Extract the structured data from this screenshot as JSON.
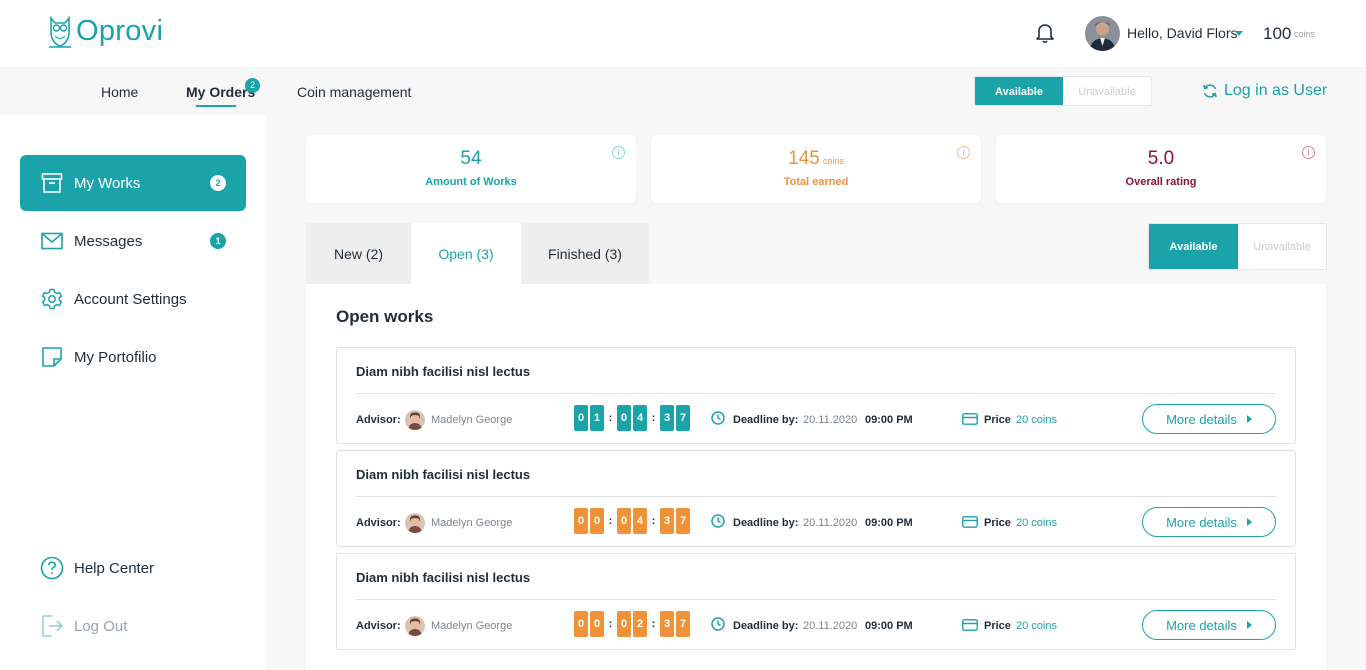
{
  "brand": {
    "name": "Oprovi",
    "accent": "#1aa3a9"
  },
  "header": {
    "greeting": "Hello, David Flors",
    "coins_value": "100",
    "coins_unit": "coins"
  },
  "nav": {
    "items": [
      {
        "label": "Home"
      },
      {
        "label": "My Orders",
        "badge": "2"
      },
      {
        "label": "Coin management"
      }
    ],
    "availability": {
      "on": "Available",
      "off": "Unavailable"
    },
    "login_as_user": "Log in as User"
  },
  "sidebar": {
    "items": [
      {
        "label": "My Works",
        "badge": "2",
        "icon": "archive-icon"
      },
      {
        "label": "Messages",
        "badge": "1",
        "icon": "mail-icon"
      },
      {
        "label": "Account Settings",
        "icon": "gear-icon"
      },
      {
        "label": "My Portofilio",
        "icon": "note-icon"
      }
    ],
    "bottom": [
      {
        "label": "Help Center",
        "icon": "help-icon"
      },
      {
        "label": "Log Out",
        "icon": "logout-icon"
      }
    ]
  },
  "stats": [
    {
      "value": "54",
      "unit": "",
      "label": "Amount of Works",
      "color": "#1aa3a9"
    },
    {
      "value": "145",
      "unit": "coins",
      "label": "Total earned",
      "color": "#f0923a"
    },
    {
      "value": "5.0",
      "unit": "",
      "label": "Overall rating",
      "color": "#8e1232"
    }
  ],
  "tabs": [
    {
      "label": "New (2)"
    },
    {
      "label": "Open (3)"
    },
    {
      "label": "Finished (3)"
    }
  ],
  "availability2": {
    "on": "Available",
    "off": "Unavailable"
  },
  "panel": {
    "title": "Open works",
    "labels": {
      "advisor": "Advisor:",
      "deadline": "Deadline by:",
      "price": "Price",
      "more": "More details"
    },
    "works": [
      {
        "title": "Diam nibh facilisi nisl lectus",
        "advisor": "Madelyn George",
        "timer": [
          "0",
          "1",
          "0",
          "4",
          "3",
          "7"
        ],
        "timer_color": "#1aa3a9",
        "date": "20.11.2020",
        "time": "09:00 PM",
        "price": "20 coins"
      },
      {
        "title": "Diam nibh facilisi nisl lectus",
        "advisor": "Madelyn George",
        "timer": [
          "0",
          "0",
          "0",
          "4",
          "3",
          "7"
        ],
        "timer_color": "#f0923a",
        "date": "20.11.2020",
        "time": "09:00 PM",
        "price": "20 coins"
      },
      {
        "title": "Diam nibh facilisi nisl lectus",
        "advisor": "Madelyn George",
        "timer": [
          "0",
          "0",
          "0",
          "2",
          "3",
          "7"
        ],
        "timer_color": "#f0923a",
        "date": "20.11.2020",
        "time": "09:00 PM",
        "price": "20 coins"
      }
    ]
  }
}
